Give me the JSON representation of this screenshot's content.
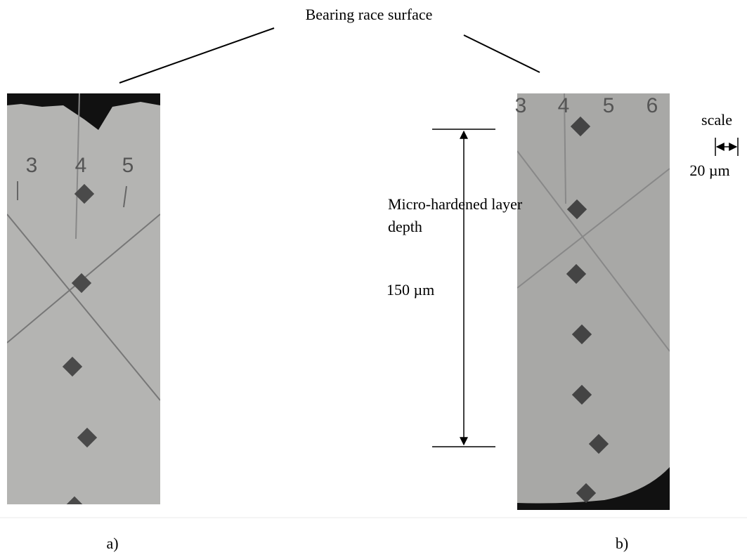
{
  "figure": {
    "title": "Bearing race surface",
    "layer_label": [
      "Micro-hardened layer",
      "depth"
    ],
    "depth_label": "150 µm",
    "scale_title": "scale",
    "scale_label": "20 µm",
    "panel_a": {
      "caption": "a)",
      "markers": [
        "3",
        "4",
        "5"
      ]
    },
    "panel_b": {
      "caption": "b)",
      "markers": [
        "3",
        "4",
        "5",
        "6"
      ]
    }
  }
}
